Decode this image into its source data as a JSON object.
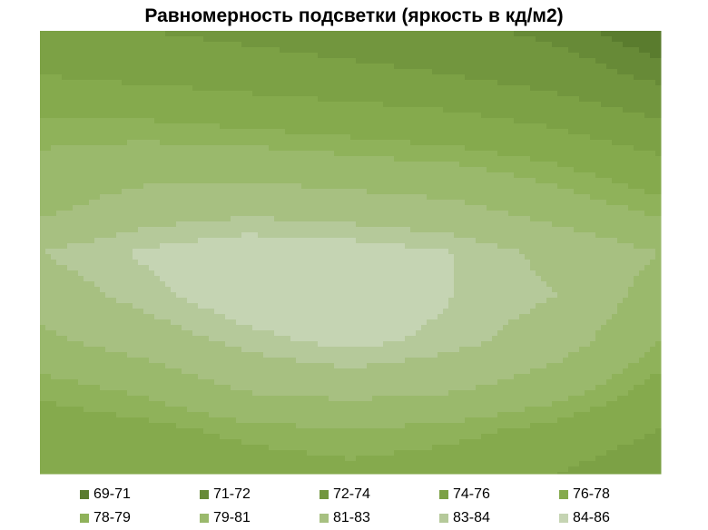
{
  "chart_data": {
    "type": "heatmap",
    "title": "Равномерность подсветки (яркость в кд/м2)",
    "xlabel": "",
    "ylabel": "",
    "legend_position": "bottom",
    "legend": [
      {
        "label": "69-71",
        "color": "#5a7c2e"
      },
      {
        "label": "71-72",
        "color": "#678a37"
      },
      {
        "label": "72-74",
        "color": "#72963e"
      },
      {
        "label": "74-76",
        "color": "#7ca145"
      },
      {
        "label": "76-78",
        "color": "#85aa4d"
      },
      {
        "label": "78-79",
        "color": "#8fb25a"
      },
      {
        "label": "79-81",
        "color": "#9ab96c"
      },
      {
        "label": "81-83",
        "color": "#a7c081"
      },
      {
        "label": "83-84",
        "color": "#b5c99a"
      },
      {
        "label": "84-86",
        "color": "#c5d4b3"
      }
    ],
    "grid": {
      "rows": 11,
      "cols": 7,
      "values": [
        [
          74.5,
          74.0,
          73.5,
          73.0,
          72.5,
          71.5,
          70.0
        ],
        [
          76.0,
          75.5,
          75.0,
          74.5,
          74.0,
          73.0,
          71.5
        ],
        [
          78.0,
          78.0,
          77.5,
          77.0,
          76.5,
          75.5,
          74.0
        ],
        [
          79.5,
          80.0,
          80.0,
          79.5,
          79.0,
          78.0,
          76.5
        ],
        [
          80.5,
          82.0,
          82.5,
          82.0,
          81.5,
          80.0,
          78.5
        ],
        [
          83.0,
          84.2,
          85.0,
          84.8,
          84.0,
          82.5,
          81.0
        ],
        [
          82.0,
          83.5,
          85.0,
          85.5,
          84.0,
          83.0,
          80.0
        ],
        [
          80.5,
          82.0,
          83.5,
          84.5,
          83.5,
          82.0,
          79.0
        ],
        [
          78.5,
          79.5,
          81.5,
          82.0,
          81.5,
          80.0,
          77.5
        ],
        [
          77.0,
          77.5,
          78.5,
          79.0,
          78.5,
          77.5,
          76.0
        ],
        [
          76.0,
          76.0,
          77.0,
          77.5,
          77.0,
          76.0,
          74.5
        ]
      ]
    }
  }
}
